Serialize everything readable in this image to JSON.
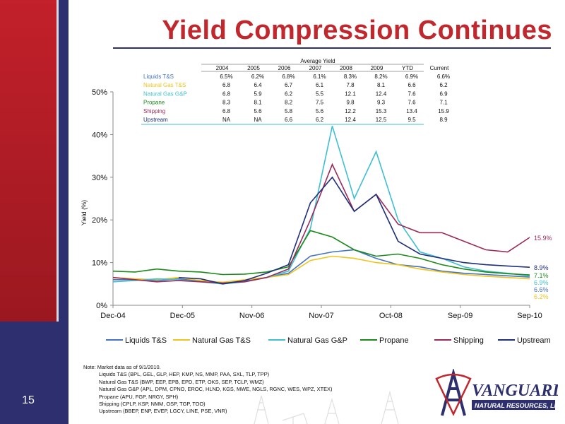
{
  "slide": {
    "title": "Yield Compression Continues",
    "page_number": "15"
  },
  "table": {
    "caption": "Average Yield",
    "headers": [
      "2004",
      "2005",
      "2006",
      "2007",
      "2008",
      "2009",
      "YTD",
      "Current"
    ],
    "rows": [
      {
        "label": "Liquids T&S",
        "color": "#4472c4",
        "values": [
          "6.5%",
          "6.2%",
          "6.8%",
          "6.1%",
          "8.3%",
          "8.2%",
          "6.9%",
          "6.6%"
        ]
      },
      {
        "label": "Natural Gas T&S",
        "color": "#f0c419",
        "values": [
          "6.8",
          "6.4",
          "6.7",
          "6.1",
          "7.8",
          "8.1",
          "6.6",
          "6.2"
        ]
      },
      {
        "label": "Natural Gas G&P",
        "color": "#3fbfcf",
        "values": [
          "6.8",
          "5.9",
          "6.2",
          "5.5",
          "12.1",
          "12.4",
          "7.6",
          "6.9"
        ]
      },
      {
        "label": "Propane",
        "color": "#1a8a1a",
        "values": [
          "8.3",
          "8.1",
          "8.2",
          "7.5",
          "9.8",
          "9.3",
          "7.6",
          "7.1"
        ]
      },
      {
        "label": "Shipping",
        "color": "#9b2a5a",
        "values": [
          "6.8",
          "5.6",
          "5.8",
          "5.6",
          "12.2",
          "15.3",
          "13.4",
          "15.9"
        ]
      },
      {
        "label": "Upstream",
        "color": "#1f2f7a",
        "values": [
          "NA",
          "NA",
          "6.6",
          "6.2",
          "12.4",
          "12.5",
          "9.5",
          "8.9"
        ]
      }
    ]
  },
  "chart_data": {
    "type": "line",
    "ylabel": "Yield (%)",
    "ylim": [
      0,
      50
    ],
    "yticks": [
      "0%",
      "10%",
      "20%",
      "30%",
      "40%",
      "50%"
    ],
    "x_ticks": [
      "Dec-04",
      "Dec-05",
      "Nov-06",
      "Nov-07",
      "Oct-08",
      "Sep-09",
      "Sep-10"
    ],
    "x": [
      "Dec-04",
      "Jun-05",
      "Dec-05",
      "Jun-06",
      "Nov-06",
      "May-07",
      "Nov-07",
      "Mar-08",
      "Jul-08",
      "Oct-08",
      "Nov-08",
      "Dec-08",
      "Jan-09",
      "Mar-09",
      "Jun-09",
      "Sep-09",
      "Dec-09",
      "Mar-10",
      "Jun-10",
      "Sep-10"
    ],
    "series": [
      {
        "name": "Liquids T&S",
        "color": "#4472c4",
        "end_label": "6.6%",
        "values": [
          6.0,
          6.0,
          5.8,
          6.2,
          5.6,
          5.2,
          5.8,
          6.5,
          7.5,
          11.5,
          12.5,
          13.0,
          11.0,
          9.5,
          9.0,
          8.0,
          7.5,
          7.2,
          6.9,
          6.6
        ]
      },
      {
        "name": "Natural  Gas T&S",
        "color": "#f0c419",
        "end_label": "6.2%",
        "values": [
          6.5,
          6.2,
          6.0,
          6.5,
          5.8,
          5.4,
          6.0,
          6.5,
          7.2,
          10.5,
          11.5,
          11.0,
          10.0,
          9.5,
          8.5,
          7.8,
          7.2,
          6.8,
          6.5,
          6.2
        ]
      },
      {
        "name": "Natural Gas G&P",
        "color": "#3fbfcf",
        "end_label": "6.9%",
        "values": [
          5.5,
          5.8,
          6.2,
          6.0,
          5.5,
          5.0,
          5.5,
          6.5,
          8.0,
          18.0,
          42.0,
          25.0,
          36.0,
          20.0,
          12.5,
          11.0,
          9.0,
          8.0,
          7.5,
          6.9
        ]
      },
      {
        "name": "Propane",
        "color": "#1a8a1a",
        "end_label": "7.1%",
        "values": [
          8.0,
          7.8,
          8.5,
          8.0,
          7.8,
          7.2,
          7.3,
          7.8,
          9.0,
          17.5,
          16.0,
          13.0,
          11.5,
          12.0,
          11.0,
          9.5,
          8.5,
          7.8,
          7.4,
          7.1
        ]
      },
      {
        "name": "Shipping",
        "color": "#9b2a5a",
        "end_label": "15.9%",
        "values": [
          6.5,
          6.0,
          5.5,
          5.8,
          5.5,
          5.2,
          5.5,
          6.5,
          8.5,
          20.0,
          33.0,
          22.0,
          26.0,
          19.0,
          17.0,
          17.0,
          15.0,
          13.0,
          12.5,
          15.9
        ]
      },
      {
        "name": "Upstream",
        "color": "#1f2f7a",
        "end_label": "8.9%",
        "values": [
          null,
          null,
          null,
          6.5,
          6.2,
          5.0,
          5.8,
          7.5,
          9.5,
          24.0,
          30.0,
          22.0,
          26.0,
          15.0,
          12.0,
          11.0,
          10.0,
          9.5,
          9.2,
          8.9
        ]
      }
    ],
    "legend_position": "bottom"
  },
  "notes": {
    "heading": "Note: Market data as of 9/1/2010.",
    "lines": [
      "Liquids T&S (BPL, GEL, GLP, HEP, KMP, NS, MMP, PAA, SXL, TLP, TPP)",
      "Natural Gas T&S (BWP, EEP, EPB, EPD, ETP, OKS, SEP, TCLP, WMZ)",
      "Natural Gas G&P (APL, DPM, CPNO, EROC, HLND, KGS, MWE, NGLS, RGNC, WES, WPZ, XTEX)",
      "Propane (APU, FGP, NRGY, SPH)",
      "Shipping (CPLP, KSP, NMM, OSP, TGP, TOO)",
      "Upstream (BBEP, ENP, EVEP, LGCY, LINE, PSE, VNR)"
    ]
  },
  "logo": {
    "name": "VANGUARD",
    "sub": "NATURAL RESOURCES, LLC",
    "brand_color": "#2e2f6e",
    "accent_color": "#c0282d"
  }
}
